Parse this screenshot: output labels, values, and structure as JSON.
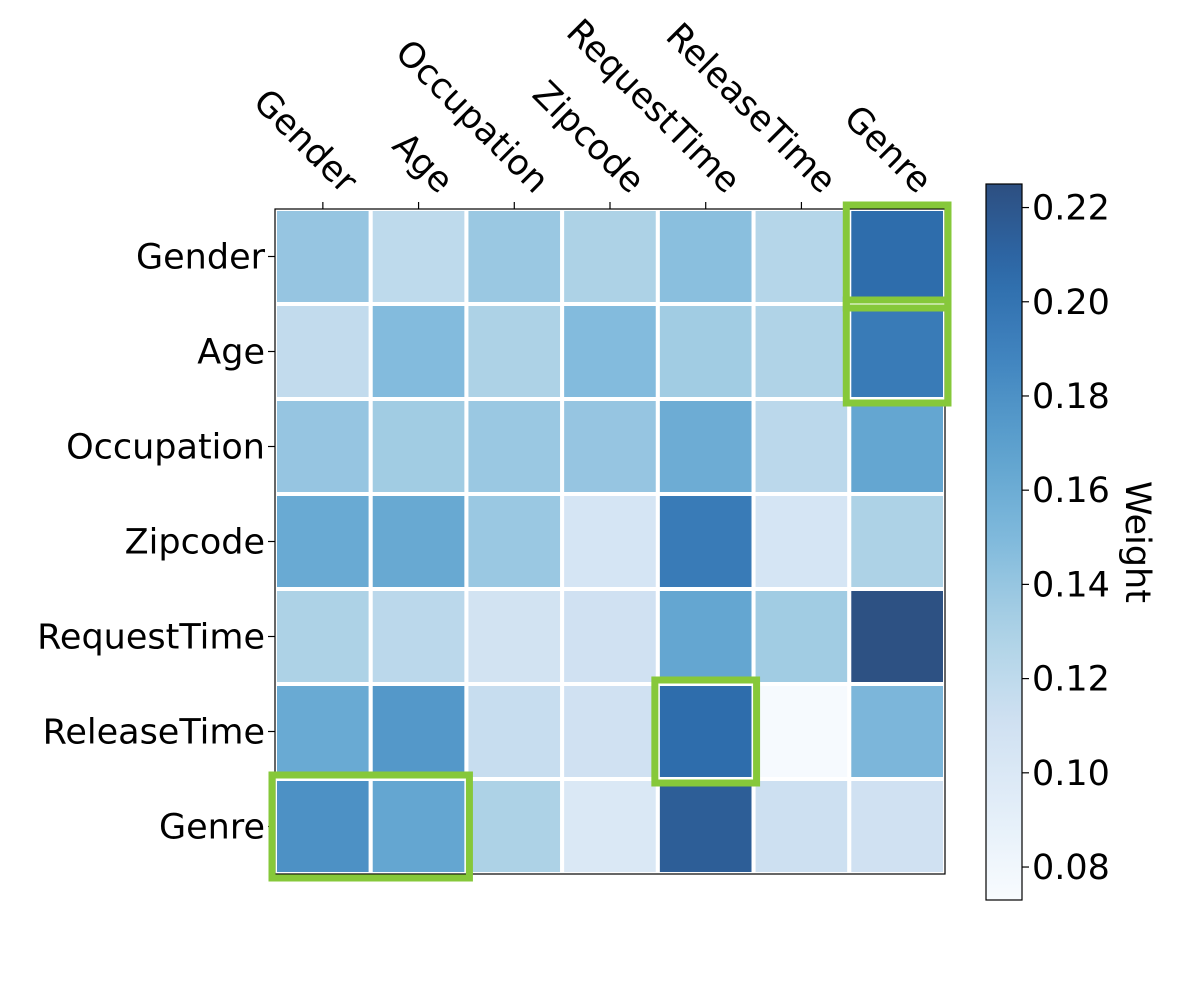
{
  "chart_data": {
    "type": "heatmap",
    "x_labels": [
      "Gender",
      "Age",
      "Occupation",
      "Zipcode",
      "RequestTime",
      "ReleaseTime",
      "Genre"
    ],
    "y_labels": [
      "Gender",
      "Age",
      "Occupation",
      "Zipcode",
      "RequestTime",
      "ReleaseTime",
      "Genre"
    ],
    "values": [
      [
        0.14,
        0.12,
        0.138,
        0.13,
        0.145,
        0.125,
        0.205
      ],
      [
        0.118,
        0.148,
        0.13,
        0.148,
        0.135,
        0.128,
        0.195
      ],
      [
        0.14,
        0.135,
        0.138,
        0.14,
        0.16,
        0.122,
        0.165
      ],
      [
        0.162,
        0.163,
        0.138,
        0.105,
        0.195,
        0.105,
        0.13
      ],
      [
        0.13,
        0.122,
        0.108,
        0.11,
        0.165,
        0.135,
        0.224
      ],
      [
        0.162,
        0.175,
        0.115,
        0.11,
        0.205,
        0.075,
        0.152
      ],
      [
        0.18,
        0.165,
        0.13,
        0.1,
        0.215,
        0.112,
        0.11
      ]
    ],
    "colorbar": {
      "label": "Weight",
      "range": [
        0.073,
        0.225
      ],
      "ticks": [
        "0.08",
        "0.10",
        "0.12",
        "0.14",
        "0.16",
        "0.18",
        "0.20",
        "0.22"
      ],
      "colormap": "Blues"
    },
    "highlights": [
      {
        "row_start": 0,
        "row_end": 0,
        "col_start": 6,
        "col_end": 6
      },
      {
        "row_start": 1,
        "row_end": 1,
        "col_start": 6,
        "col_end": 6
      },
      {
        "row_start": 5,
        "row_end": 5,
        "col_start": 4,
        "col_end": 4
      },
      {
        "row_start": 6,
        "row_end": 6,
        "col_start": 0,
        "col_end": 1
      }
    ],
    "highlight_color": "#86c83a",
    "grid_color": "#ffffff"
  }
}
